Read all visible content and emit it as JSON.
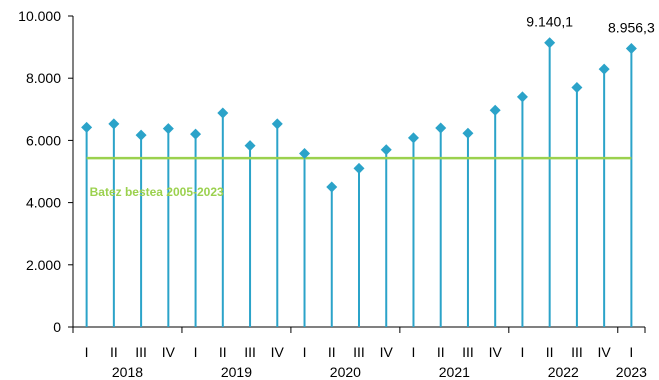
{
  "chart_data": {
    "type": "line",
    "style": "lollipop",
    "categories": [
      "I",
      "II",
      "III",
      "IV",
      "I",
      "II",
      "III",
      "IV",
      "I",
      "II",
      "III",
      "IV",
      "I",
      "II",
      "III",
      "IV",
      "I",
      "II",
      "III",
      "IV",
      "I"
    ],
    "years": [
      {
        "label": "2018",
        "start": 0,
        "end": 3
      },
      {
        "label": "2019",
        "start": 4,
        "end": 7
      },
      {
        "label": "2020",
        "start": 8,
        "end": 11
      },
      {
        "label": "2021",
        "start": 12,
        "end": 15
      },
      {
        "label": "2022",
        "start": 16,
        "end": 19
      },
      {
        "label": "2023",
        "start": 20,
        "end": 20
      }
    ],
    "values": [
      6420,
      6530,
      6170,
      6380,
      6200,
      6880,
      5830,
      6530,
      5580,
      4500,
      5100,
      5700,
      6080,
      6400,
      6230,
      6970,
      7400,
      9140.1,
      7700,
      8290,
      8956.3
    ],
    "data_labels": [
      {
        "index": 17,
        "text": "9.140,1"
      },
      {
        "index": 20,
        "text": "8.956,3"
      }
    ],
    "reference_line": {
      "value": 5430,
      "label": "Batez bestea 2005-2023"
    },
    "ylim": [
      0,
      10000
    ],
    "yticks": [
      {
        "value": 0,
        "label": "0"
      },
      {
        "value": 2000,
        "label": "2.000"
      },
      {
        "value": 4000,
        "label": "4.000"
      },
      {
        "value": 6000,
        "label": "6.000"
      },
      {
        "value": 8000,
        "label": "8.000"
      },
      {
        "value": 10000,
        "label": "10.000"
      }
    ],
    "grid": false,
    "colors": {
      "series": "#2ba3c9",
      "reference": "#9bd14e",
      "axis": "#000000"
    }
  }
}
